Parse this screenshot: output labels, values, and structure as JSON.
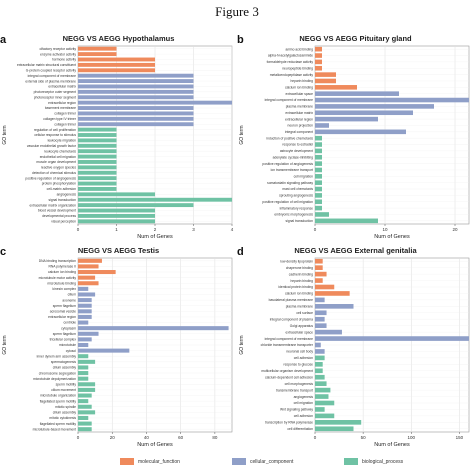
{
  "figure": {
    "title": "Figure 3"
  },
  "legend": {
    "categories": [
      {
        "key": "mf",
        "label": "molecular_function",
        "color": "#ef8a5c"
      },
      {
        "key": "cc",
        "label": "cellular_component",
        "color": "#8f9fc8"
      },
      {
        "key": "bp",
        "label": "biological_process",
        "color": "#6fc2a4"
      }
    ]
  },
  "chart_data": [
    {
      "type": "bar",
      "orientation": "horizontal",
      "panel_label": "a",
      "title": "NEGG VS AEGG Hypothalamus",
      "xlabel": "Num of Genes",
      "ylabel": "GO term",
      "xlim": [
        0,
        4
      ],
      "xticks": [
        0,
        1,
        2,
        3,
        4
      ],
      "grid": true,
      "categories": [
        "olfactory receptor activity",
        "enzyme activator activity",
        "hormone activity",
        "extracellular matrix structural constituent",
        "G-protein coupled receptor activity",
        "integral component of membrane",
        "external side of plasma membrane",
        "extracellular matrix",
        "photoreceptor outer segment",
        "photoreceptor inner segment",
        "extracellular region",
        "basement membrane",
        "collagen trimer",
        "collagen type IV trimer",
        "collagen trimer",
        "regulation of cell proliferation",
        "cellular response to stimulus",
        "leukocyte migration",
        "vascular endothelial growth factor",
        "leukocyte chemotaxis",
        "endothelial cell migration",
        "muscle organ development",
        "reactive oxygen species",
        "detection of chemical stimulus",
        "positive regulation of angiogenesis",
        "protein phosphorylation",
        "cell-matrix adhesion",
        "angiogenesis",
        "signal transduction",
        "extracellular matrix organization",
        "blood vessel development",
        "developmental process",
        "visual perception"
      ],
      "values": [
        1,
        1,
        2,
        2,
        2,
        3,
        3,
        3,
        3,
        3,
        4,
        3,
        3,
        3,
        3,
        1,
        1,
        1,
        1,
        1,
        1,
        1,
        1,
        1,
        1,
        1,
        1,
        2,
        4,
        3,
        2,
        2,
        2
      ],
      "groups": [
        "mf",
        "mf",
        "mf",
        "mf",
        "mf",
        "cc",
        "cc",
        "cc",
        "cc",
        "cc",
        "cc",
        "cc",
        "cc",
        "cc",
        "cc",
        "bp",
        "bp",
        "bp",
        "bp",
        "bp",
        "bp",
        "bp",
        "bp",
        "bp",
        "bp",
        "bp",
        "bp",
        "bp",
        "bp",
        "bp",
        "bp",
        "bp",
        "bp"
      ]
    },
    {
      "type": "bar",
      "orientation": "horizontal",
      "panel_label": "b",
      "title": "NEGG VS AEGG Pituitary gland",
      "xlabel": "Num of Genes",
      "ylabel": "GO term",
      "xlim": [
        0,
        22
      ],
      "xticks": [
        0,
        10,
        20
      ],
      "grid": true,
      "categories": [
        "amino acid binding",
        "alpha-N-acetylgalactosaminide",
        "formaldehyde reductase activity",
        "neuropeptide binding",
        "metalloendopeptidase activity",
        "heparin binding",
        "calcium ion binding",
        "extracellular space",
        "integral component of membrane",
        "plasma membrane",
        "extracellular matrix",
        "extracellular region",
        "neuron projection",
        "integral component",
        "induction of positive chemotaxis",
        "response to estradiol",
        "astrocyte development",
        "adenylate cyclase-inhibiting",
        "positive regulation of angiogenesis",
        "ion transmembrane transport",
        "cell migration",
        "somatostatin signaling pathway",
        "mast cell chemotaxis",
        "sprouting angiogenesis",
        "positive regulation of cell migration",
        "inflammatory response",
        "embryonic morphogenesis",
        "signal transduction"
      ],
      "values": [
        1,
        1,
        1,
        1,
        3,
        3,
        6,
        12,
        22,
        17,
        14,
        9,
        2,
        13,
        1,
        1,
        1,
        1,
        1,
        1,
        1,
        1,
        1,
        1,
        1,
        1,
        2,
        9
      ],
      "groups": [
        "mf",
        "mf",
        "mf",
        "mf",
        "mf",
        "mf",
        "mf",
        "cc",
        "cc",
        "cc",
        "cc",
        "cc",
        "cc",
        "cc",
        "bp",
        "bp",
        "bp",
        "bp",
        "bp",
        "bp",
        "bp",
        "bp",
        "bp",
        "bp",
        "bp",
        "bp",
        "bp",
        "bp"
      ]
    },
    {
      "type": "bar",
      "orientation": "horizontal",
      "panel_label": "c",
      "title": "NEGG VS AEGG Testis",
      "xlabel": "Num of Genes",
      "ylabel": "GO term",
      "xlim": [
        0,
        90
      ],
      "xticks": [
        0,
        20,
        40,
        60,
        80
      ],
      "grid": true,
      "categories": [
        "DNA binding transcription",
        "RNA polymerase II",
        "calcium ion binding",
        "microtubule motor activity",
        "microtubule binding",
        "kinesin complex",
        "cilium",
        "axoneme",
        "sperm flagellum",
        "acrosomal vesicle",
        "extracellular region",
        "centriole",
        "cytoplasm",
        "sperm flagellum",
        "tricellular complex",
        "microtubule",
        "cytosol",
        "inner dynein arm assembly",
        "spermatogenesis",
        "cilium assembly",
        "chromosome segregation",
        "microtubule depolymerization",
        "sperm motility",
        "cilium movement",
        "microtubule organization",
        "flagellated sperm motility",
        "mitotic spindle",
        "cilium assembly",
        "mitotic cytokinesis",
        "flagellated sperm motility",
        "microtubule-based movement"
      ],
      "values": [
        14,
        12,
        22,
        10,
        12,
        6,
        10,
        8,
        8,
        8,
        8,
        6,
        88,
        12,
        8,
        6,
        30,
        6,
        10,
        6,
        6,
        6,
        10,
        10,
        8,
        6,
        8,
        10,
        6,
        8,
        8
      ],
      "groups": [
        "mf",
        "mf",
        "mf",
        "mf",
        "mf",
        "cc",
        "cc",
        "cc",
        "cc",
        "cc",
        "cc",
        "cc",
        "cc",
        "cc",
        "cc",
        "cc",
        "cc",
        "bp",
        "bp",
        "bp",
        "bp",
        "bp",
        "bp",
        "bp",
        "bp",
        "bp",
        "bp",
        "bp",
        "bp",
        "bp",
        "bp"
      ]
    },
    {
      "type": "bar",
      "orientation": "horizontal",
      "panel_label": "d",
      "title": "NEGG VS AEGG External genitalia",
      "xlabel": "Num of Genes",
      "ylabel": "GO term",
      "xlim": [
        0,
        160
      ],
      "xticks": [
        0,
        50,
        100,
        150
      ],
      "grid": true,
      "categories": [
        "low-density lipoprotein",
        "chaperone binding",
        "cadherin binding",
        "heparin binding",
        "identical protein binding",
        "calcium ion binding",
        "basolateral plasma membrane",
        "plasma membrane",
        "cell surface",
        "integral component of plasma",
        "Golgi apparatus",
        "extracellular space",
        "integral component of membrane",
        "chloride transmembrane transporter",
        "neuronal cell body",
        "cell adhesion",
        "response to glucose",
        "multicellular organism development",
        "calcium-dependent cell adhesion",
        "cell morphogenesis",
        "transmembrane transport",
        "angiogenesis",
        "cell migration",
        "Wnt signaling pathway",
        "cell adhesion",
        "transcription by RNA polymerase",
        "cell differentiation"
      ],
      "values": [
        8,
        8,
        12,
        8,
        20,
        36,
        10,
        40,
        12,
        10,
        12,
        28,
        160,
        6,
        10,
        10,
        8,
        8,
        10,
        12,
        16,
        14,
        20,
        10,
        20,
        48,
        40
      ],
      "groups": [
        "mf",
        "mf",
        "mf",
        "mf",
        "mf",
        "mf",
        "cc",
        "cc",
        "cc",
        "cc",
        "cc",
        "cc",
        "cc",
        "cc",
        "cc",
        "bp",
        "bp",
        "bp",
        "bp",
        "bp",
        "bp",
        "bp",
        "bp",
        "bp",
        "bp",
        "bp",
        "bp"
      ]
    }
  ]
}
